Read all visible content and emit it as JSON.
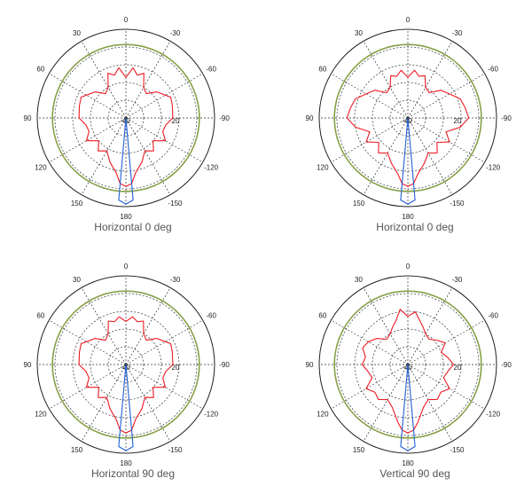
{
  "colors": {
    "pattern": "#ee1b24",
    "beam": "#1f5fd6",
    "reference_ring": "#86a046",
    "grid": "#333333",
    "caption": "#555555"
  },
  "chart_data": [
    {
      "type": "polar",
      "title": "Horizontal 0 deg",
      "angle_ticks": [
        "0",
        "-30",
        "-60",
        "-90",
        "-120",
        "-150",
        "180",
        "150",
        "120",
        "90",
        "60",
        "30"
      ],
      "radial_ticks": [
        "-40",
        "20"
      ],
      "radial_range": [
        -40,
        30
      ],
      "reference_ring_db": 18,
      "grid": true,
      "series": [
        {
          "color": "red",
          "angle_deg": [
            0,
            8,
            15,
            22,
            30,
            40,
            50,
            60,
            65,
            75,
            90,
            100,
            110,
            120,
            130,
            140,
            150,
            160,
            170,
            175,
            180,
            185,
            190,
            200,
            210,
            220,
            230,
            240,
            250,
            260,
            270,
            285,
            295,
            300,
            310,
            320,
            330,
            338,
            345,
            352,
            360
          ],
          "r_db": [
            -8,
            0,
            -5,
            -2,
            -12,
            -15,
            -8,
            -4,
            -1,
            -2,
            -3,
            -8,
            -9,
            -4,
            -12,
            -6,
            -10,
            -3,
            4,
            12,
            14,
            12,
            4,
            -3,
            -10,
            -6,
            -12,
            -4,
            -9,
            -8,
            -3,
            -2,
            -1,
            -4,
            -8,
            -15,
            -12,
            -2,
            -5,
            0,
            -8
          ]
        },
        {
          "color": "blue",
          "angle_deg": [
            170,
            175,
            180,
            185,
            190
          ],
          "r_db": [
            -40,
            25,
            28,
            25,
            -40
          ]
        }
      ]
    },
    {
      "type": "polar",
      "title": "Horizontal 0 deg",
      "angle_ticks": [
        "0",
        "-30",
        "-60",
        "-90",
        "-120",
        "-150",
        "180",
        "150",
        "120",
        "90",
        "60",
        "30"
      ],
      "radial_ticks": [
        "-40",
        "20"
      ],
      "radial_range": [
        -40,
        30
      ],
      "reference_ring_db": 18,
      "grid": true,
      "series": [
        {
          "color": "red",
          "angle_deg": [
            0,
            8,
            15,
            22,
            30,
            40,
            50,
            60,
            70,
            80,
            90,
            100,
            110,
            120,
            130,
            140,
            150,
            160,
            170,
            175,
            180,
            185,
            190,
            200,
            210,
            220,
            230,
            240,
            250,
            260,
            270,
            280,
            290,
            300,
            310,
            320,
            330,
            338,
            345,
            352,
            360
          ],
          "r_db": [
            -8,
            -2,
            -6,
            -4,
            -12,
            -14,
            -6,
            -2,
            4,
            6,
            8,
            2,
            -8,
            -2,
            -10,
            -4,
            -8,
            -2,
            5,
            12,
            14,
            12,
            5,
            -2,
            -8,
            -4,
            -10,
            -2,
            -8,
            2,
            8,
            6,
            4,
            -2,
            -6,
            -14,
            -12,
            -4,
            -6,
            -2,
            -8
          ]
        },
        {
          "color": "blue",
          "angle_deg": [
            170,
            175,
            180,
            185,
            190
          ],
          "r_db": [
            -40,
            25,
            28,
            25,
            -40
          ]
        }
      ]
    },
    {
      "type": "polar",
      "title": "Horizontal 90 deg",
      "angle_ticks": [
        "0",
        "-30",
        "-60",
        "-90",
        "-120",
        "-150",
        "180",
        "150",
        "120",
        "90",
        "60",
        "30"
      ],
      "radial_ticks": [
        "-40",
        "20"
      ],
      "radial_range": [
        -40,
        30
      ],
      "reference_ring_db": 18,
      "grid": true,
      "series": [
        {
          "color": "red",
          "angle_deg": [
            0,
            8,
            15,
            22,
            30,
            40,
            50,
            60,
            65,
            75,
            90,
            100,
            110,
            120,
            130,
            140,
            150,
            160,
            170,
            175,
            180,
            185,
            190,
            200,
            210,
            220,
            230,
            240,
            250,
            260,
            270,
            285,
            295,
            300,
            310,
            320,
            330,
            338,
            345,
            352,
            360
          ],
          "r_db": [
            -6,
            -2,
            -5,
            -3,
            -12,
            -15,
            -8,
            -4,
            -1,
            -2,
            -3,
            -8,
            -9,
            -4,
            -12,
            -6,
            -10,
            -3,
            4,
            12,
            14,
            12,
            4,
            -3,
            -10,
            -6,
            -12,
            -4,
            -9,
            -8,
            -3,
            -2,
            -1,
            -4,
            -8,
            -15,
            -12,
            -3,
            -5,
            -2,
            -6
          ]
        },
        {
          "color": "blue",
          "angle_deg": [
            170,
            175,
            180,
            185,
            190
          ],
          "r_db": [
            -40,
            25,
            28,
            25,
            -40
          ]
        }
      ]
    },
    {
      "type": "polar",
      "title": "Vertical 90 deg",
      "angle_ticks": [
        "0",
        "-30",
        "-60",
        "-90",
        "-120",
        "-150",
        "180",
        "150",
        "120",
        "90",
        "60",
        "30"
      ],
      "radial_ticks": [
        "-40",
        "20"
      ],
      "radial_range": [
        -40,
        30
      ],
      "reference_ring_db": 18,
      "grid": true,
      "series": [
        {
          "color": "red",
          "angle_deg": [
            0,
            8,
            15,
            22,
            30,
            40,
            50,
            60,
            70,
            80,
            90,
            100,
            110,
            120,
            130,
            140,
            150,
            160,
            170,
            175,
            180,
            185,
            190,
            200,
            210,
            220,
            230,
            240,
            250,
            260,
            270,
            280,
            290,
            300,
            310,
            320,
            330,
            338,
            345,
            352,
            360
          ],
          "r_db": [
            -2,
            4,
            -4,
            -8,
            -12,
            -14,
            -8,
            -4,
            -2,
            -6,
            -4,
            -8,
            -10,
            -2,
            -6,
            -4,
            -8,
            -4,
            6,
            12,
            14,
            12,
            6,
            -4,
            -8,
            -4,
            -6,
            -2,
            -10,
            -8,
            -4,
            -8,
            -12,
            -6,
            -10,
            -14,
            -12,
            -8,
            -4,
            2,
            -2
          ]
        },
        {
          "color": "blue",
          "angle_deg": [
            170,
            175,
            180,
            185,
            190
          ],
          "r_db": [
            -40,
            25,
            28,
            25,
            -40
          ]
        }
      ]
    }
  ]
}
